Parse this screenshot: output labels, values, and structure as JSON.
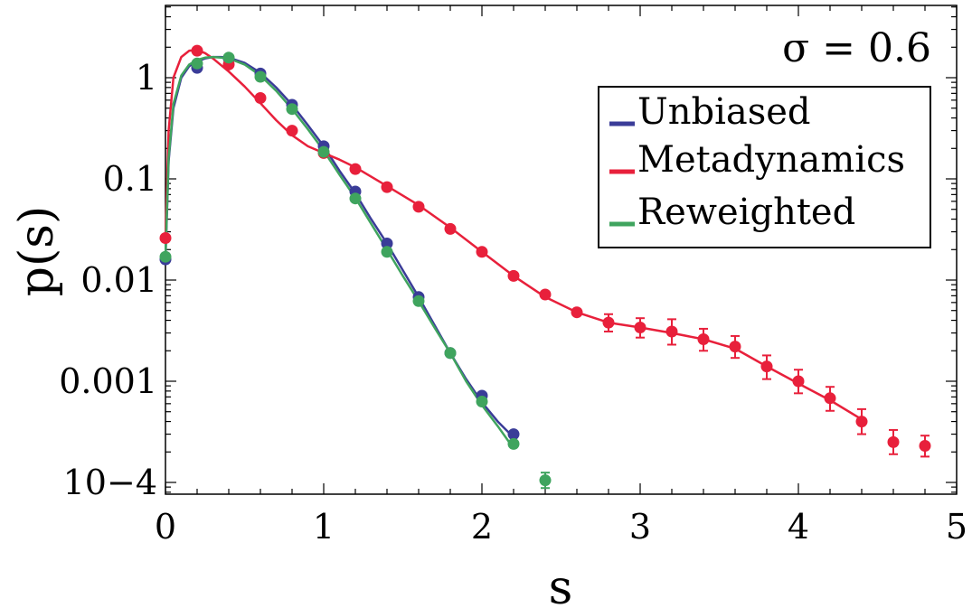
{
  "chart_data": {
    "type": "line",
    "title": "",
    "annotation": "σ = 0.6",
    "xlabel": "s",
    "ylabel": "p(s)",
    "xlim": [
      0,
      5
    ],
    "ylim": [
      7e-05,
      5
    ],
    "yscale": "log",
    "x_ticks": [
      0,
      1,
      2,
      3,
      4,
      5
    ],
    "x_tick_labels": [
      "0",
      "1",
      "2",
      "3",
      "4",
      "5"
    ],
    "y_ticks": [
      1,
      0.1,
      0.01,
      0.001,
      0.0001
    ],
    "y_tick_labels": [
      "1",
      "0.1",
      "0.01",
      "0.001",
      "10−4"
    ],
    "grid": false,
    "legend_position": "top-right",
    "series": [
      {
        "name": "Unbiased",
        "color": "#3a3c98",
        "curve": {
          "x": [
            0.0,
            0.02,
            0.05,
            0.1,
            0.15,
            0.2,
            0.25,
            0.3,
            0.35,
            0.4,
            0.5,
            0.6,
            0.7,
            0.8,
            0.9,
            1.0,
            1.1,
            1.2,
            1.3,
            1.4,
            1.5,
            1.6,
            1.7,
            1.8,
            1.9,
            2.0,
            2.1,
            2.18
          ],
          "y": [
            0.016,
            0.15,
            0.5,
            1.0,
            1.3,
            1.45,
            1.55,
            1.6,
            1.6,
            1.58,
            1.4,
            1.12,
            0.8,
            0.54,
            0.34,
            0.21,
            0.12,
            0.072,
            0.04,
            0.023,
            0.0125,
            0.0068,
            0.0036,
            0.0019,
            0.00105,
            0.00062,
            0.0004,
            0.0003
          ]
        },
        "points": {
          "x": [
            0.0,
            0.2,
            0.4,
            0.6,
            0.8,
            1.0,
            1.2,
            1.4,
            1.6,
            1.8,
            2.0,
            2.2
          ],
          "y": [
            0.016,
            1.25,
            1.55,
            1.1,
            0.54,
            0.21,
            0.075,
            0.023,
            0.0068,
            0.0019,
            0.00072,
            0.0003
          ]
        }
      },
      {
        "name": "Metadynamics",
        "color": "#e8203b",
        "curve": {
          "x": [
            0.0,
            0.02,
            0.05,
            0.1,
            0.15,
            0.2,
            0.25,
            0.3,
            0.4,
            0.5,
            0.6,
            0.7,
            0.8,
            0.9,
            1.0,
            1.1,
            1.2,
            1.4,
            1.6,
            1.8,
            2.0,
            2.2,
            2.4,
            2.6,
            2.8,
            3.0,
            3.2,
            3.4,
            3.6,
            3.8,
            4.0,
            4.2,
            4.4
          ],
          "y": [
            0.026,
            0.3,
            1.0,
            1.6,
            1.85,
            1.88,
            1.75,
            1.55,
            1.15,
            0.82,
            0.56,
            0.38,
            0.27,
            0.21,
            0.18,
            0.155,
            0.13,
            0.085,
            0.055,
            0.033,
            0.019,
            0.011,
            0.0068,
            0.0048,
            0.0038,
            0.0034,
            0.003,
            0.0026,
            0.0021,
            0.0014,
            0.00095,
            0.00065,
            0.00042
          ]
        },
        "points": {
          "x": [
            0.0,
            0.2,
            0.4,
            0.6,
            0.8,
            1.0,
            1.2,
            1.4,
            1.6,
            1.8,
            2.0,
            2.2,
            2.4,
            2.6,
            2.8,
            3.0,
            3.2,
            3.4,
            3.6,
            3.8,
            4.0,
            4.2,
            4.4,
            4.6,
            4.8
          ],
          "y": [
            0.026,
            1.85,
            1.35,
            0.63,
            0.3,
            0.18,
            0.125,
            0.083,
            0.053,
            0.032,
            0.019,
            0.011,
            0.0072,
            0.0048,
            0.0038,
            0.0034,
            0.0031,
            0.0026,
            0.0022,
            0.0014,
            0.001,
            0.00068,
            0.0004,
            0.00025,
            0.00023
          ]
        },
        "error_bars": {
          "x": [
            2.8,
            3.0,
            3.2,
            3.4,
            3.6,
            3.8,
            4.0,
            4.2,
            4.4,
            4.6,
            4.8
          ],
          "y": [
            0.0038,
            0.0034,
            0.0031,
            0.0026,
            0.0022,
            0.0014,
            0.001,
            0.00068,
            0.0004,
            0.00025,
            0.00023
          ],
          "err_low": [
            0.0031,
            0.0027,
            0.0023,
            0.002,
            0.0017,
            0.00105,
            0.00076,
            0.00051,
            0.0003,
            0.00019,
            0.00018
          ],
          "err_high": [
            0.0046,
            0.0042,
            0.0041,
            0.0033,
            0.0028,
            0.0018,
            0.0013,
            0.00088,
            0.00053,
            0.00033,
            0.00029
          ]
        }
      },
      {
        "name": "Reweighted",
        "color": "#3fa45e",
        "curve": {
          "x": [
            0.0,
            0.02,
            0.05,
            0.1,
            0.15,
            0.2,
            0.25,
            0.3,
            0.35,
            0.4,
            0.5,
            0.6,
            0.7,
            0.8,
            0.9,
            1.0,
            1.1,
            1.2,
            1.3,
            1.4,
            1.5,
            1.6,
            1.7,
            1.8,
            1.9,
            2.0,
            2.1,
            2.18
          ],
          "y": [
            0.017,
            0.16,
            0.55,
            1.05,
            1.35,
            1.5,
            1.58,
            1.6,
            1.58,
            1.55,
            1.35,
            1.05,
            0.74,
            0.49,
            0.31,
            0.19,
            0.11,
            0.065,
            0.036,
            0.02,
            0.011,
            0.0062,
            0.0034,
            0.0019,
            0.001,
            0.00058,
            0.00036,
            0.00024
          ]
        },
        "points": {
          "x": [
            0.0,
            0.2,
            0.4,
            0.6,
            0.8,
            1.0,
            1.2,
            1.4,
            1.6,
            1.8,
            2.0,
            2.2,
            2.4
          ],
          "y": [
            0.017,
            1.38,
            1.58,
            1.02,
            0.49,
            0.185,
            0.064,
            0.019,
            0.0062,
            0.0019,
            0.00063,
            0.00024,
            0.000105
          ]
        },
        "error_bars": {
          "x": [
            2.4
          ],
          "y": [
            0.000105
          ],
          "err_low": [
            8.8e-05
          ],
          "err_high": [
            0.000125
          ]
        }
      }
    ]
  }
}
